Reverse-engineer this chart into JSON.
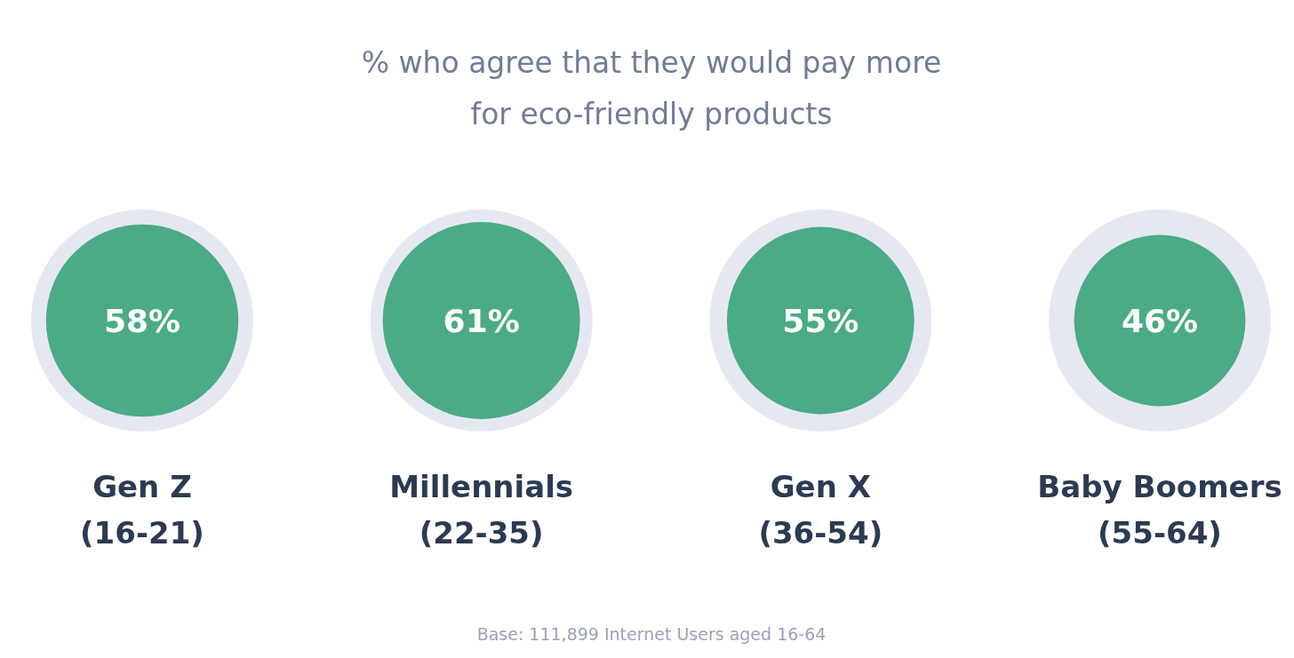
{
  "chart_data": {
    "type": "other",
    "title": "% who agree that they would pay more\nfor eco-friendly products",
    "categories": [
      "Gen Z\n(16-21)",
      "Millennials\n(22-35)",
      "Gen X\n(36-54)",
      "Baby Boomers\n(55-64)"
    ],
    "values": [
      58,
      61,
      55,
      46
    ],
    "value_labels": [
      "58%",
      "61%",
      "55%",
      "46%"
    ],
    "color": "#4aab85",
    "annotations": [
      "Base: 111,899 Internet Users aged 16-64"
    ]
  }
}
